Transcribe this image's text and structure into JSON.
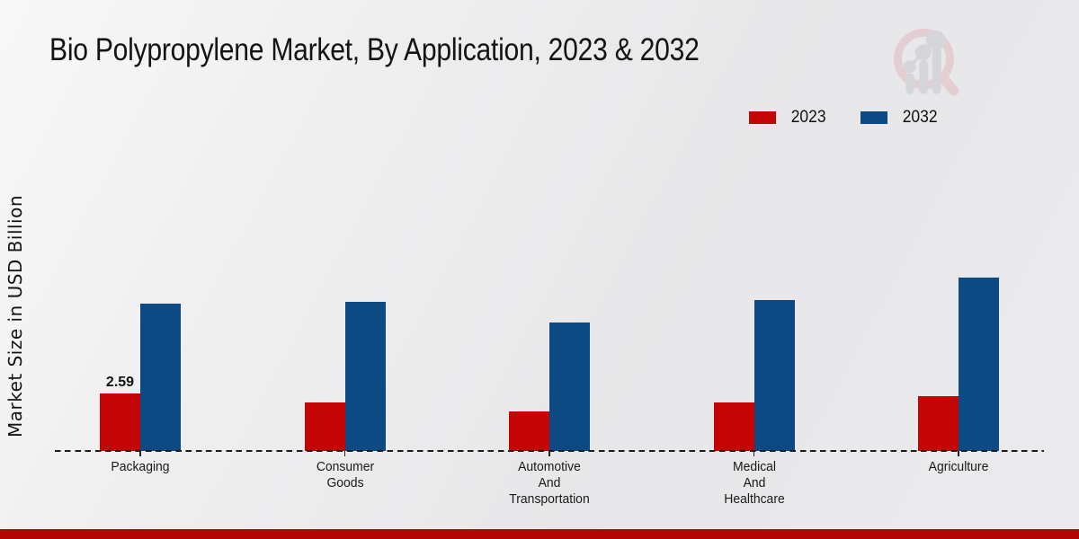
{
  "title": "Bio Polypropylene Market, By Application, 2023 & 2032",
  "y_axis_label": "Market Size in USD Billion",
  "legend": {
    "items": [
      {
        "label": "2023",
        "color": "#c40505"
      },
      {
        "label": "2032",
        "color": "#0d4a84"
      }
    ],
    "position": "top-right"
  },
  "colors": {
    "series_2023": "#c40505",
    "series_2032": "#0d4a84",
    "footer_bar": "#b40404",
    "baseline": "#1b1b1b",
    "logo_ring_pink": "#dfb9c0",
    "logo_bars_grey": "#c7c9ce"
  },
  "logo_name": "market-research-growth-magnifier-logo",
  "chart_data": {
    "type": "bar",
    "title": "Bio Polypropylene Market, By Application, 2023 & 2032",
    "xlabel": "",
    "ylabel": "Market Size in USD Billion",
    "categories": [
      "Packaging",
      "Consumer Goods",
      "Automotive And Transportation",
      "Medical And Healthcare",
      "Agriculture"
    ],
    "series": [
      {
        "name": "2023",
        "color": "#c40505",
        "values": [
          2.59,
          2.2,
          1.8,
          2.2,
          2.45
        ]
      },
      {
        "name": "2032",
        "color": "#0d4a84",
        "values": [
          6.65,
          6.7,
          5.8,
          6.8,
          7.8
        ]
      }
    ],
    "value_labels": [
      {
        "series": "2023",
        "category": "Packaging",
        "text": "2.59"
      }
    ],
    "ylim": [
      0,
      8.5
    ],
    "grid": false,
    "y_axis_ticks_visible": false,
    "zero_line_style": "dashed",
    "legend_position": "top-right"
  },
  "footer": {
    "label": ""
  }
}
